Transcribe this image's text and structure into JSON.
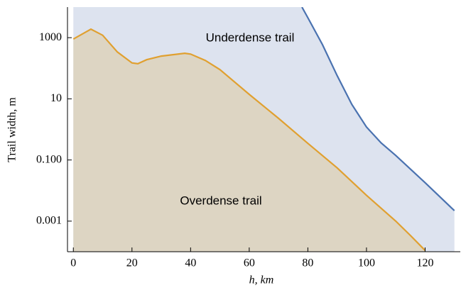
{
  "chart_data": {
    "type": "area",
    "log_y": true,
    "x_label": "h, km",
    "y_label": "Trail width, m",
    "xlim": [
      -2,
      132
    ],
    "ylim": [
      0.0001,
      10000
    ],
    "xticks": [
      0,
      20,
      40,
      60,
      80,
      100,
      120
    ],
    "yticks": [
      0.001,
      {
        "value": 0.1,
        "label": "0.100"
      },
      10,
      1000
    ],
    "annotations": [
      "Underdense trail",
      "Overdense trail"
    ],
    "series": [
      {
        "name": "Underdense trail",
        "color": "#4a72b0",
        "fill": "#dde3ef",
        "x": [
          78,
          80,
          85,
          90,
          95,
          100,
          105,
          110,
          120,
          130
        ],
        "values": [
          10000,
          4500,
          590,
          57,
          6.6,
          1.2,
          0.36,
          0.14,
          0.018,
          0.0022
        ]
      },
      {
        "name": "Overdense trail",
        "color": "#e0a030",
        "fill": "#ddd5c3",
        "x": [
          0,
          6,
          10,
          15,
          20,
          22,
          25,
          30,
          38,
          40,
          45,
          50,
          60,
          70,
          80,
          90,
          100,
          110,
          115,
          120
        ],
        "values": [
          900,
          1900,
          1200,
          340,
          150,
          140,
          190,
          250,
          310,
          290,
          180,
          90,
          14,
          2.3,
          0.35,
          0.055,
          0.007,
          0.001,
          0.00034,
          0.00011
        ]
      }
    ]
  }
}
